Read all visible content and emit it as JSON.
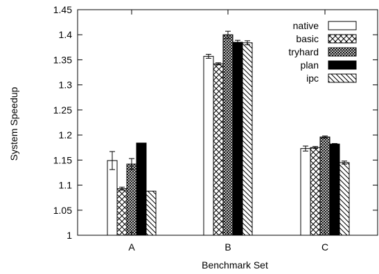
{
  "chart_data": {
    "type": "bar",
    "xlabel": "Benchmark Set",
    "ylabel": "System Speedup",
    "ylim": [
      1,
      1.45
    ],
    "yticks": [
      "1",
      "1.05",
      "1.1",
      "1.15",
      "1.2",
      "1.25",
      "1.3",
      "1.35",
      "1.4",
      "1.45"
    ],
    "categories": [
      "A",
      "B",
      "C"
    ],
    "legend_position": "top-right",
    "grid": false,
    "series": [
      {
        "name": "native",
        "pattern": "none",
        "values": [
          1.149,
          1.357,
          1.173
        ],
        "errors": [
          0.018,
          0.004,
          0.005
        ]
      },
      {
        "name": "basic",
        "pattern": "cross",
        "values": [
          1.093,
          1.342,
          1.175
        ],
        "errors": [
          0.003,
          0.002,
          0.002
        ]
      },
      {
        "name": "tryhard",
        "pattern": "dense",
        "values": [
          1.142,
          1.4,
          1.196
        ],
        "errors": [
          0.011,
          0.007,
          0.002
        ]
      },
      {
        "name": "plan",
        "pattern": "solid",
        "values": [
          1.184,
          1.385,
          1.182
        ],
        "errors": [
          0.0,
          0.004,
          0.001
        ]
      },
      {
        "name": "ipc",
        "pattern": "hatch",
        "values": [
          1.088,
          1.384,
          1.145
        ],
        "errors": [
          0.0,
          0.004,
          0.003
        ]
      }
    ]
  }
}
